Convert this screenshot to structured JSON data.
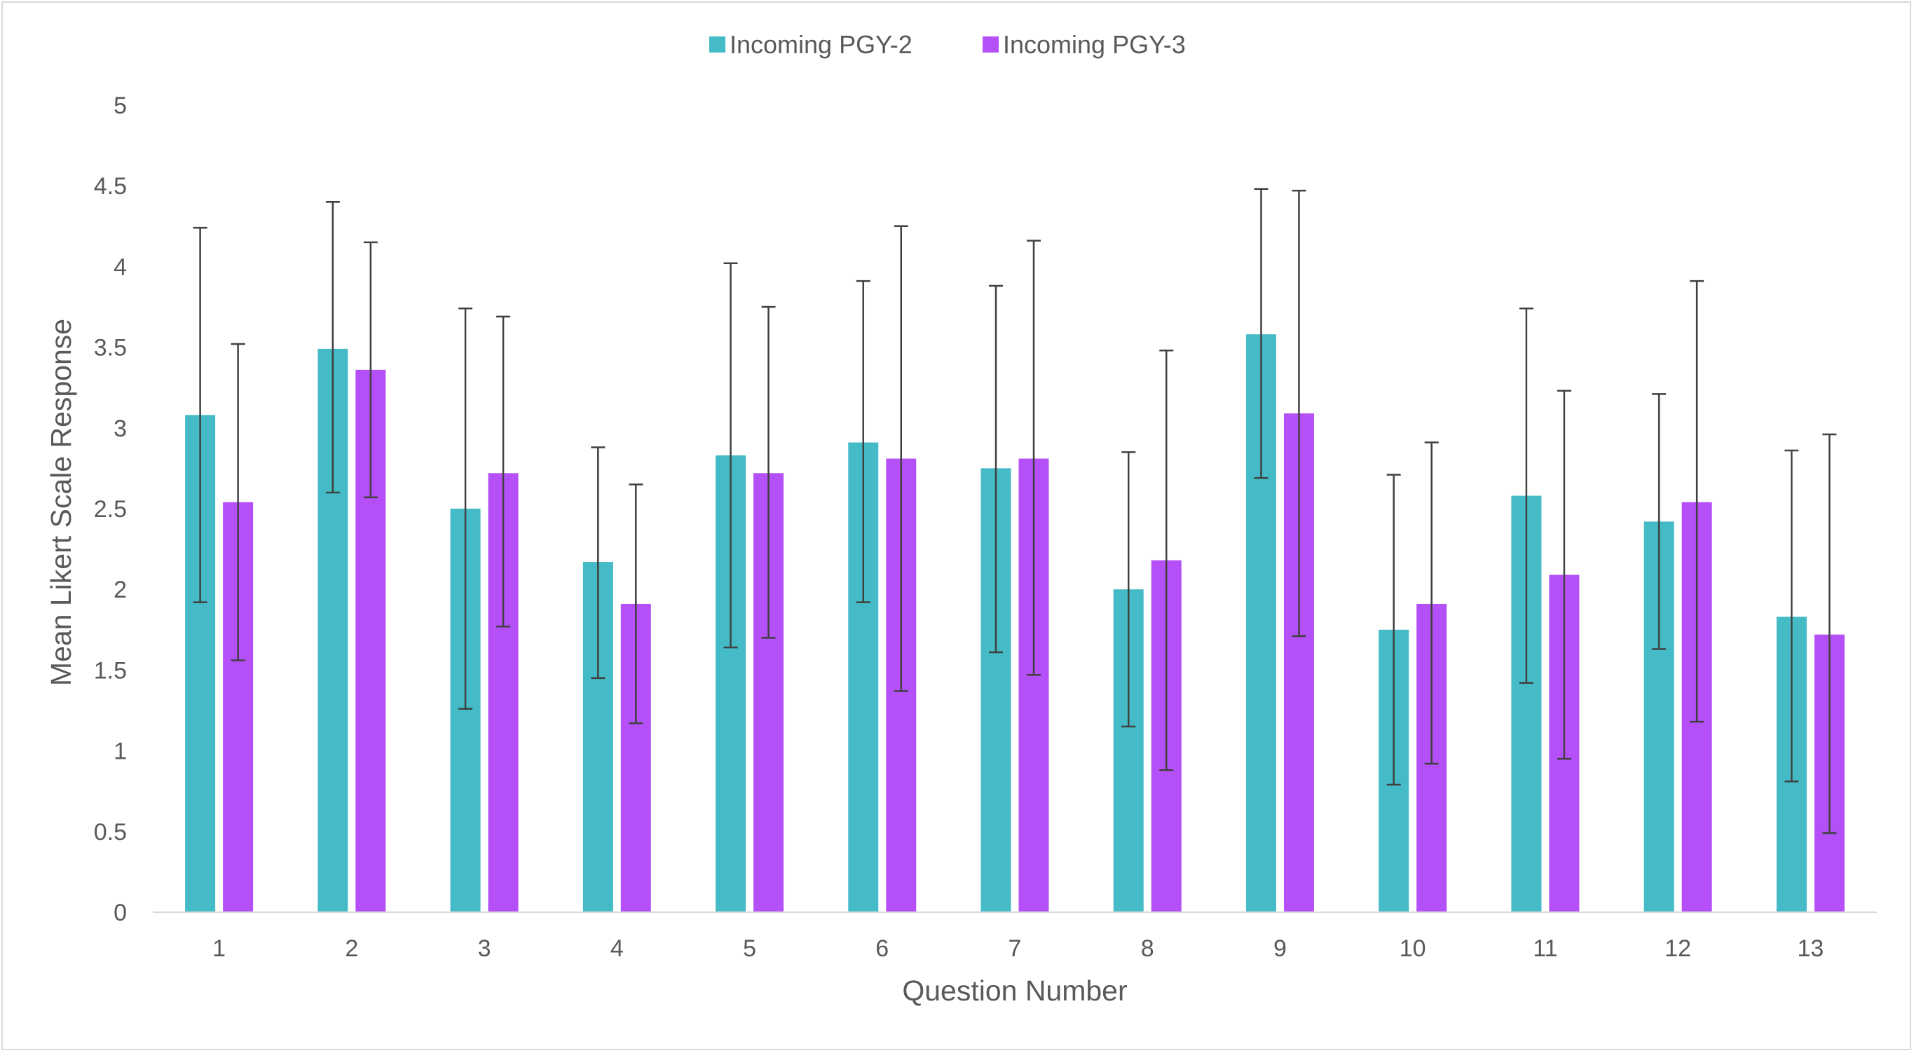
{
  "chart_data": {
    "type": "bar",
    "title": "",
    "xlabel": "Question Number",
    "ylabel": "Mean Likert Scale Response",
    "ylim": [
      0,
      5
    ],
    "yticks": [
      0,
      0.5,
      1,
      1.5,
      2,
      2.5,
      3,
      3.5,
      4,
      4.5,
      5
    ],
    "ytick_labels": [
      "0",
      "0.5",
      "1",
      "1.5",
      "2",
      "2.5",
      "3",
      "3.5",
      "4",
      "4.5",
      "5"
    ],
    "grid": false,
    "legend": "top-center",
    "categories": [
      "1",
      "2",
      "3",
      "4",
      "5",
      "6",
      "7",
      "8",
      "9",
      "10",
      "11",
      "12",
      "13"
    ],
    "series": [
      {
        "name": "Incoming PGY-2",
        "color": "#44bbc6",
        "values": [
          3.08,
          3.49,
          2.5,
          2.17,
          2.83,
          2.91,
          2.75,
          2.0,
          3.58,
          1.75,
          2.58,
          2.42,
          1.83
        ],
        "error_low": [
          1.92,
          2.6,
          1.26,
          1.45,
          1.64,
          1.92,
          1.61,
          1.15,
          2.69,
          0.79,
          1.42,
          1.63,
          0.81
        ],
        "error_high": [
          4.24,
          4.4,
          3.74,
          2.88,
          4.02,
          3.91,
          3.88,
          2.85,
          4.48,
          2.71,
          3.74,
          3.21,
          2.86
        ]
      },
      {
        "name": "Incoming PGY-3",
        "color": "#b550f8",
        "values": [
          2.54,
          3.36,
          2.72,
          1.91,
          2.72,
          2.81,
          2.81,
          2.18,
          3.09,
          1.91,
          2.09,
          2.54,
          1.72
        ],
        "error_low": [
          1.56,
          2.57,
          1.77,
          1.17,
          1.7,
          1.37,
          1.47,
          0.88,
          1.71,
          0.92,
          0.95,
          1.18,
          0.49
        ],
        "error_high": [
          3.52,
          4.15,
          3.69,
          2.65,
          3.75,
          4.25,
          4.16,
          3.48,
          4.47,
          2.91,
          3.23,
          3.91,
          2.96
        ]
      }
    ]
  }
}
